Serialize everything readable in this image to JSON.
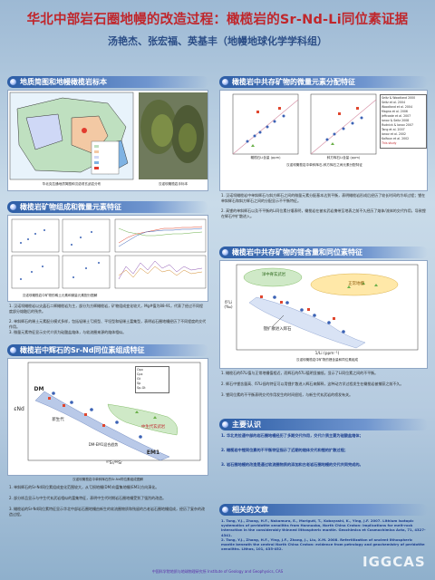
{
  "title": "华北中部岩石圈地幔的改造过程：橄榄岩的Sr-Nd-Li同位素证据",
  "authors": "汤艳杰、张宏福、英基丰（地幔地球化学学科组）",
  "sections": {
    "s1": "地质简图和地幔橄榄岩标本",
    "s2": "橄榄岩中共存矿物的微量元素分配特征",
    "s3": "橄榄岩矿物组成和微量元素特征",
    "s4": "橄榄岩中共存矿物的锂含量和同位素特征",
    "s5": "橄榄岩中辉石的Sr-Nd同位素组成特征",
    "s6": "主要认识",
    "s7": "相关的文章"
  },
  "fig_labels": {
    "map_cap": "华北克拉通地质简图和汉诺坝玄武岩分布",
    "photo_cap": "汉诺坝橄榄岩手标本",
    "dist_cap": "汉诺坝橄榄岩中单斜辉石-斜方辉石之间元素分配特征",
    "ree_cap": "汉诺坝橄榄岩中矿物的稀土元素和微量元素配分图解",
    "li_cap": "汉诺坝橄榄岩中矿物的锂含量和同位素组成",
    "srnd_cap": "汉诺坝橄榄岩中单斜辉石的Sr-Nd同位素组成图解",
    "dist_x1": "橄榄石Li含量 (ppm)",
    "dist_x2": "斜方辉石Li含量 (ppm)",
    "li_xlabel": "1/Li (ppm⁻¹)",
    "li_ylabel": "δ⁷Li (‰)",
    "li_top": "洋中脊玄武岩",
    "li_right": "正常地幔",
    "li_bottom": "锂扩散进入辉石",
    "srnd_ylabel": "εNd",
    "srnd_xlabel": "⁸⁷Sr/⁸⁶Sr",
    "srnd_dm": "DM",
    "srnd_em1": "EM1",
    "srnd_ns": "中生代玄武岩",
    "srnd_cz": "新生代",
    "srnd_type": "DM-EM1混合趋势"
  },
  "legend_refs": [
    "Seitz & Woodland 2000",
    "Seitz et al. 2004",
    "Woodland et al. 2004",
    "Magna et al. 2006",
    "Jeffcoate et al. 2007",
    "Ionov & Seitz 2008",
    "Rudnick & Ionov 2007",
    "Tang et al. 2007",
    "Ionov et al. 2002",
    "Kalfoun et al. 2002",
    "This study"
  ],
  "srnd_legend": [
    "Opx",
    "Cpx",
    "Gt",
    "Sp",
    "Sp-Gt"
  ],
  "texts": {
    "s2_p1": "1. 汉诺坝橄榄岩中单斜辉石与斜方辉石之间的微量元素分配基本达到平衡，表明橄榄岩形成后经历了较长时间的冷却过程；锂在单斜辉石和斜方辉石之间的分配显示不平衡特征。",
    "s2_p2": "2. 高锂的单斜辉石以及不平衡的Li同位素分馏表明，橄榄岩在被玄武岩携带至地表之前不久经历了熔体/流体的交代作用，导致锂在辉石中扩散进入。",
    "s3_p1": "1. 汉诺坝橄榄岩以尖晶石二辉橄榄岩为主，部分为方辉橄榄岩，矿物组成变化较大，Mg#值为88-91，代表了经过不同程度部分熔融后的残余。",
    "s3_p2": "2. 单斜辉石的稀土元素配分模式多样，包括轻稀土亏损型、平坦型和轻稀土富集型，表明岩石圈地幔经历了不同程度的交代作用。",
    "s3_p3": "3. 微量元素特征显示交代介质为硅酸盐熔体，与软流圈来源的熔体相似。",
    "s4_p1": "1. 橄榄石的δ7Li值与正常地幔值相近，而辉石的δ7Li值明显偏低，显示了Li同位素之间的不平衡。",
    "s4_p2": "2. 辉石中锂含量高、δ7Li低的特征可以用锂扩散进入辉石来解释，这种动力学过程发生在橄榄岩被捕获之前不久。",
    "s4_p3": "3. 锂同位素的不平衡表明交代作用发生的时间很短，与新生代玄武岩的喷发有关。",
    "s5_p1": "1. 单斜辉石的Sr-Nd同位素组成变化范围较大，从亏损地幔(DM)向富集地幔(EM1)方向演化。",
    "s5_p2": "2. 部分样品显示与中生代玄武岩相似的富集特征，表明中生代时期岩石圈地幔受到了强烈的改造。",
    "s5_p3": "3. 橄榄岩的Sr-Nd同位素特征显示华北中部岩石圈地幔由新生的软流圈物质和残留的古老岩石圈地幔组成，经历了复杂的改造过程。",
    "c1": "1. 华北克拉通中部的岩石圈地幔经历了多期交代作用，交代介质主要为硅酸盐熔体；",
    "c2": "2. 橄榄岩中锂同位素的不平衡特征指示了近期的熔体交代和锂的扩散过程；",
    "c3": "3. 岩石圈地幔的改造是通过软流圈物质的添加和古老岩石圈地幔的交代共同完成的。"
  },
  "references": [
    "1. Tang, Y.J., Zhang, H.F., Nakamura, E., Moriguti, T., Kobayashi, K., Ying, J.F. 2007. Lithium isotopic systematics of peridotite xenoliths from Hannuoba, North China Craton: implications for melt-rock interaction in the considerably thinned lithospheric mantle. Geochimica et Cosmochimica Acta, 71, 4327-4341.",
    "2. Tang, Y.J., Zhang, H.F., Ying, J.F., Zhang, J., Liu, X.M. 2008. Refertilization of ancient lithospheric mantle beneath the central North China Craton: evidence from petrology and geochemistry of peridotite xenoliths. Lithos, 101, 435-452."
  ],
  "footer": "中国科学院地质与地球物理研究所  Institute of Geology and Geophysics, CAS",
  "watermark": "IGGCAS",
  "colors": {
    "title": "#c0262b",
    "authors": "#2b4d86",
    "header": "#2c5da6"
  }
}
